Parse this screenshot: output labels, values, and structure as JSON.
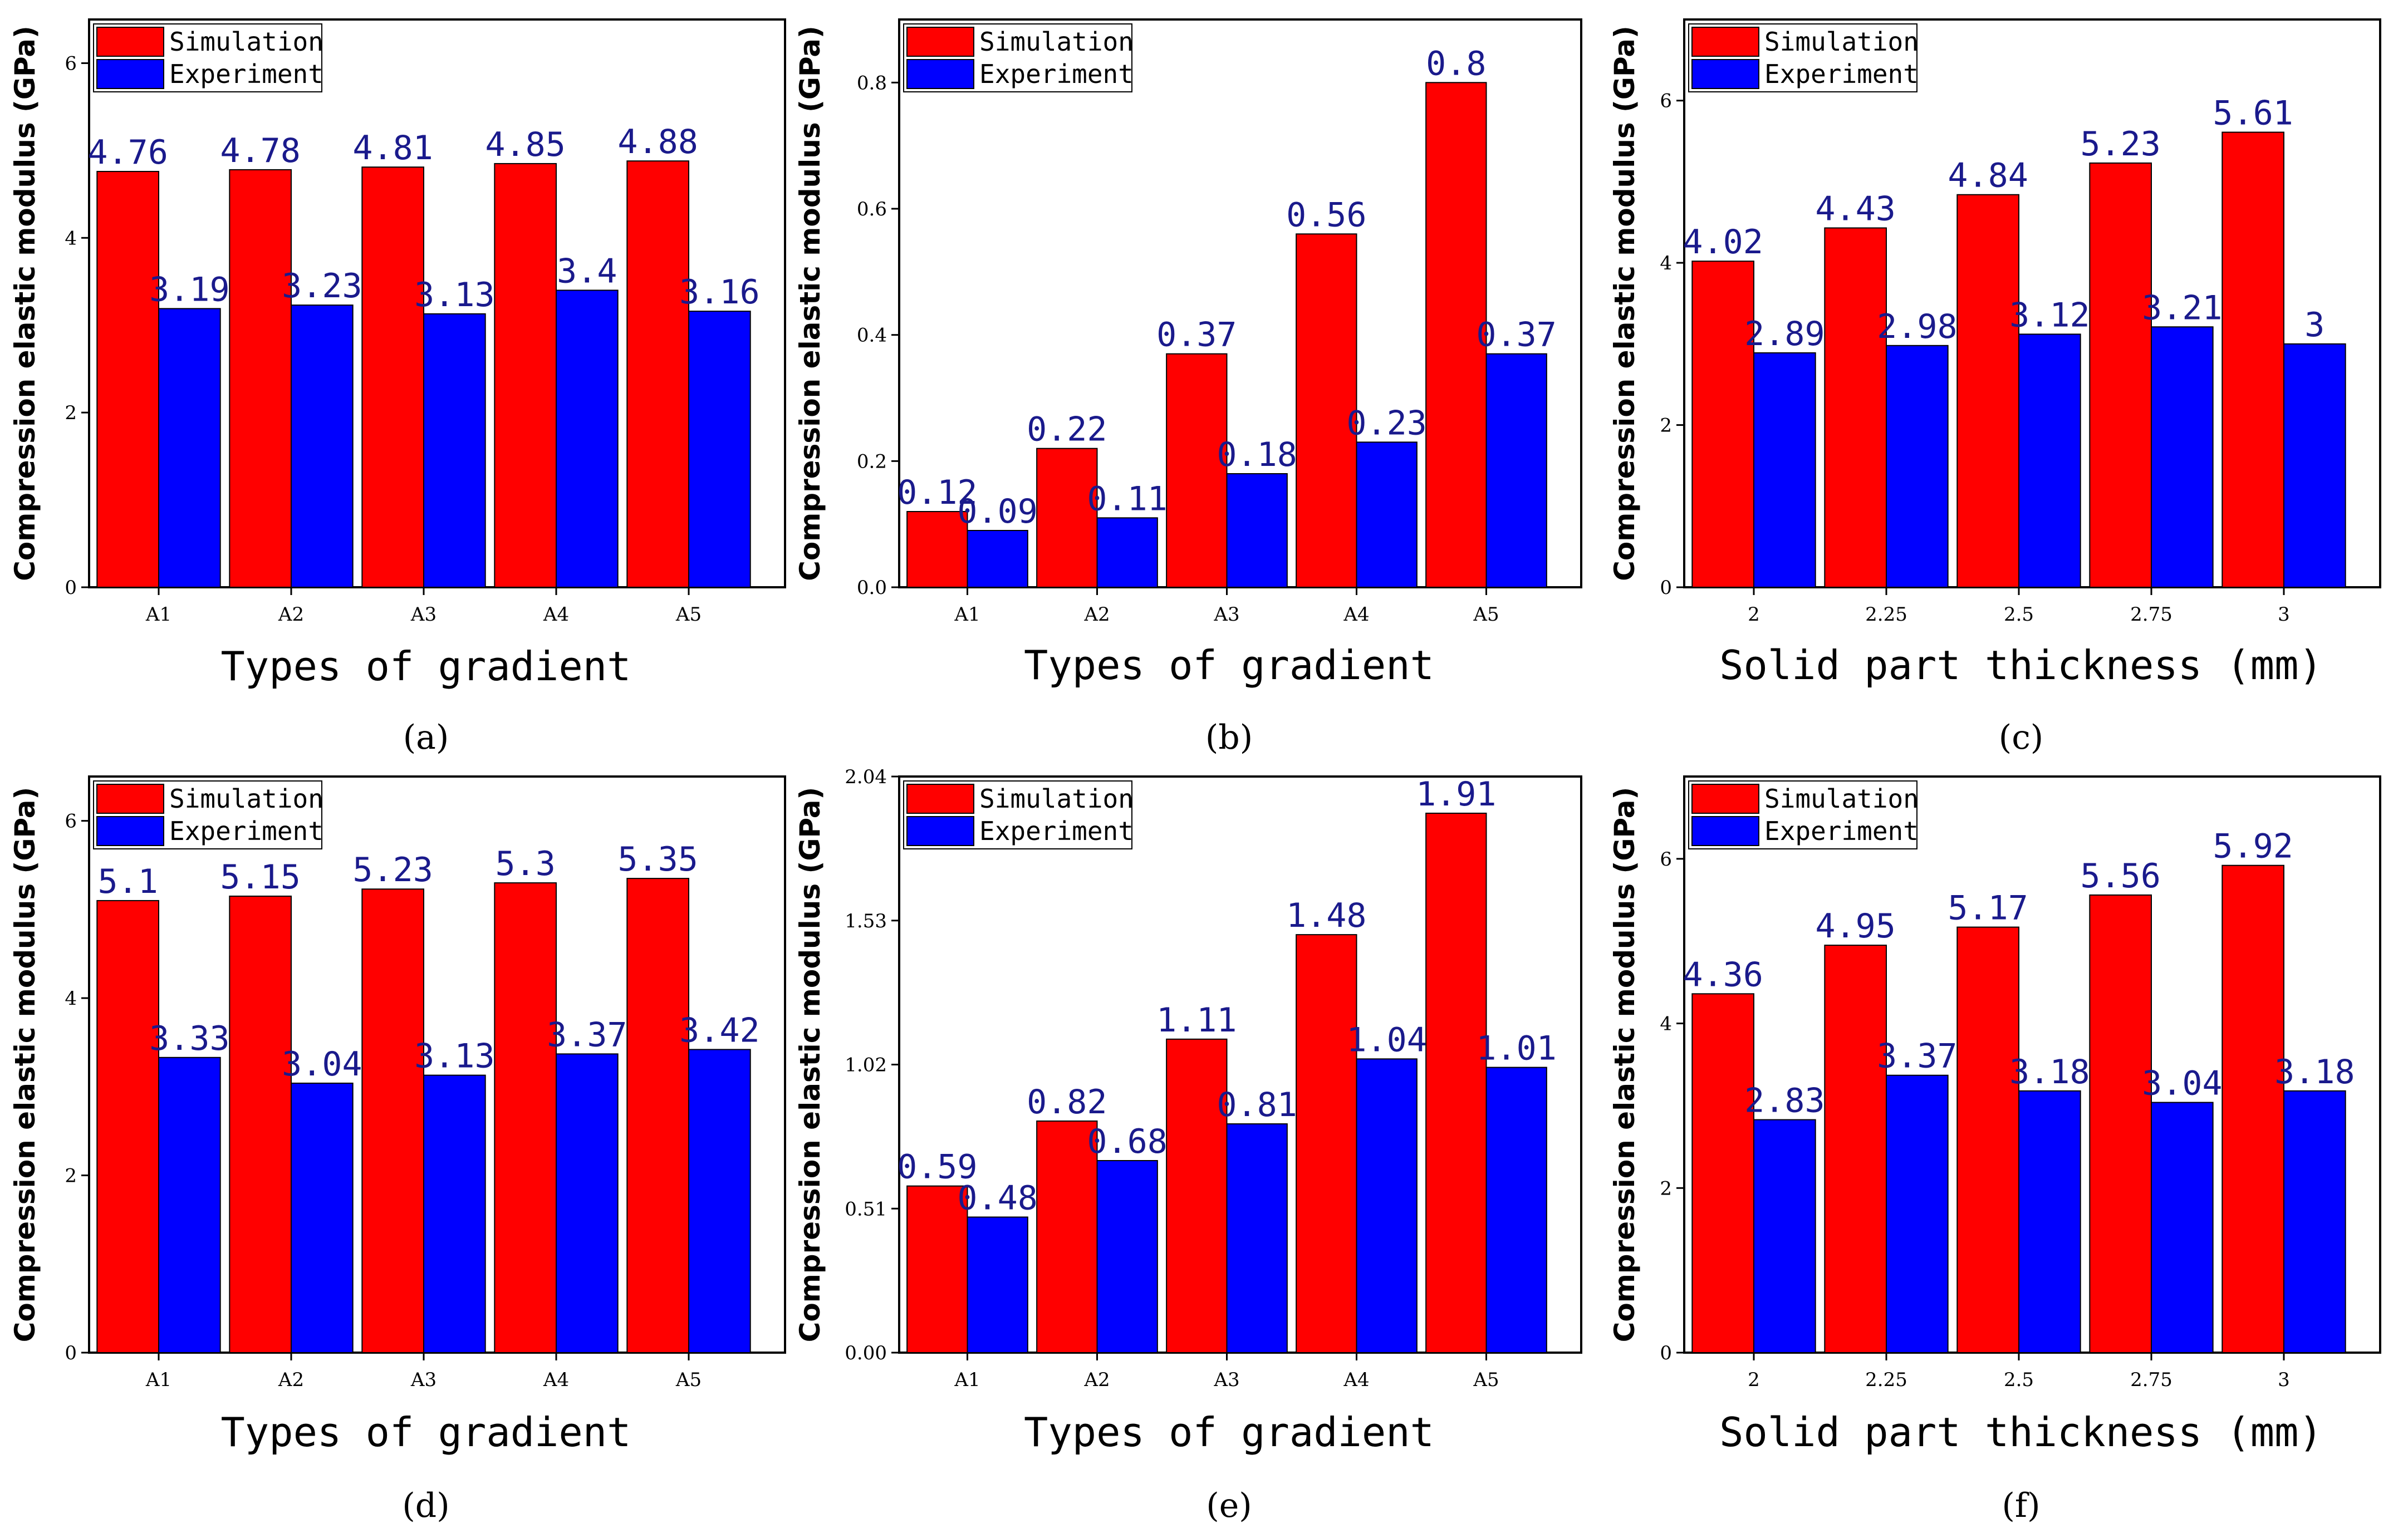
{
  "colors": {
    "simulation": "#ff0000",
    "experiment": "#0000ff",
    "label": "#1a1a8c"
  },
  "legend": {
    "simulation": "Simulation",
    "experiment": "Experiment"
  },
  "chart_data": [
    {
      "panel": "(a)",
      "panel_letter": "a",
      "type": "bar",
      "xlabel": "Types of gradient",
      "ylabel": "Compression elastic modulus (GPa)",
      "categories": [
        "A1",
        "A2",
        "A3",
        "A4",
        "A5"
      ],
      "ylim": [
        0,
        6.5
      ],
      "yticks": [
        0,
        2,
        4,
        6
      ],
      "ytick_labels": [
        "0",
        "2",
        "4",
        "6"
      ],
      "series": [
        {
          "name": "Simulation",
          "values": [
            4.76,
            4.78,
            4.81,
            4.85,
            4.88
          ],
          "labels": [
            "4.76",
            "4.78",
            "4.81",
            "4.85",
            "4.88"
          ]
        },
        {
          "name": "Experiment",
          "values": [
            3.19,
            3.23,
            3.13,
            3.4,
            3.16
          ],
          "labels": [
            "3.19",
            "3.23",
            "3.13",
            "3.4",
            "3.16"
          ]
        }
      ]
    },
    {
      "panel": "(b)",
      "panel_letter": "b",
      "type": "bar",
      "xlabel": "Types of gradient",
      "ylabel": "Compression elastic modulus (GPa)",
      "categories": [
        "A1",
        "A2",
        "A3",
        "A4",
        "A5"
      ],
      "ylim": [
        0,
        0.9
      ],
      "yticks": [
        0,
        0.2,
        0.4,
        0.6,
        0.8
      ],
      "ytick_labels": [
        "0.0",
        "0.2",
        "0.4",
        "0.6",
        "0.8"
      ],
      "series": [
        {
          "name": "Simulation",
          "values": [
            0.12,
            0.22,
            0.37,
            0.56,
            0.8
          ],
          "labels": [
            "0.12",
            "0.22",
            "0.37",
            "0.56",
            "0.8"
          ]
        },
        {
          "name": "Experiment",
          "values": [
            0.09,
            0.11,
            0.18,
            0.23,
            0.37
          ],
          "labels": [
            "0.09",
            "0.11",
            "0.18",
            "0.23",
            "0.37"
          ]
        }
      ]
    },
    {
      "panel": "(c)",
      "panel_letter": "c",
      "type": "bar",
      "xlabel": "Solid part thickness (mm)",
      "ylabel": "Compression elastic modulus (GPa)",
      "categories": [
        "2",
        "2.25",
        "2.5",
        "2.75",
        "3"
      ],
      "ylim": [
        0,
        7
      ],
      "yticks": [
        0,
        2,
        4,
        6
      ],
      "ytick_labels": [
        "0",
        "2",
        "4",
        "6"
      ],
      "series": [
        {
          "name": "Simulation",
          "values": [
            4.02,
            4.43,
            4.84,
            5.23,
            5.61
          ],
          "labels": [
            "4.02",
            "4.43",
            "4.84",
            "5.23",
            "5.61"
          ]
        },
        {
          "name": "Experiment",
          "values": [
            2.89,
            2.98,
            3.12,
            3.21,
            3.0
          ],
          "labels": [
            "2.89",
            "2.98",
            "3.12",
            "3.21",
            "3"
          ]
        }
      ]
    },
    {
      "panel": "(d)",
      "panel_letter": "d",
      "type": "bar",
      "xlabel": "Types of gradient",
      "ylabel": "Compression elastic modulus (GPa)",
      "categories": [
        "A1",
        "A2",
        "A3",
        "A4",
        "A5"
      ],
      "ylim": [
        0,
        6.5
      ],
      "yticks": [
        0,
        2,
        4,
        6
      ],
      "ytick_labels": [
        "0",
        "2",
        "4",
        "6"
      ],
      "series": [
        {
          "name": "Simulation",
          "values": [
            5.1,
            5.15,
            5.23,
            5.3,
            5.35
          ],
          "labels": [
            "5.1",
            "5.15",
            "5.23",
            "5.3",
            "5.35"
          ]
        },
        {
          "name": "Experiment",
          "values": [
            3.33,
            3.04,
            3.13,
            3.37,
            3.42
          ],
          "labels": [
            "3.33",
            "3.04",
            "3.13",
            "3.37",
            "3.42"
          ]
        }
      ]
    },
    {
      "panel": "(e)",
      "panel_letter": "e",
      "type": "bar",
      "xlabel": "Types of gradient",
      "ylabel": "Compression elastic modulus (GPa)",
      "categories": [
        "A1",
        "A2",
        "A3",
        "A4",
        "A5"
      ],
      "ylim": [
        0,
        2.04
      ],
      "yticks": [
        0,
        0.51,
        1.02,
        1.53,
        2.04
      ],
      "ytick_labels": [
        "0.00",
        "0.51",
        "1.02",
        "1.53",
        "2.04"
      ],
      "series": [
        {
          "name": "Simulation",
          "values": [
            0.59,
            0.82,
            1.11,
            1.48,
            1.91
          ],
          "labels": [
            "0.59",
            "0.82",
            "1.11",
            "1.48",
            "1.91"
          ]
        },
        {
          "name": "Experiment",
          "values": [
            0.48,
            0.68,
            0.81,
            1.04,
            1.01
          ],
          "labels": [
            "0.48",
            "0.68",
            "0.81",
            "1.04",
            "1.01"
          ]
        }
      ]
    },
    {
      "panel": "(f)",
      "panel_letter": "f",
      "type": "bar",
      "xlabel": "Solid part thickness (mm)",
      "ylabel": "Compression elastic modulus (GPa)",
      "categories": [
        "2",
        "2.25",
        "2.5",
        "2.75",
        "3"
      ],
      "ylim": [
        0,
        7
      ],
      "yticks": [
        0,
        2,
        4,
        6
      ],
      "ytick_labels": [
        "0",
        "2",
        "4",
        "6"
      ],
      "series": [
        {
          "name": "Simulation",
          "values": [
            4.36,
            4.95,
            5.17,
            5.56,
            5.92
          ],
          "labels": [
            "4.36",
            "4.95",
            "5.17",
            "5.56",
            "5.92"
          ]
        },
        {
          "name": "Experiment",
          "values": [
            2.83,
            3.37,
            3.18,
            3.04,
            3.18
          ],
          "labels": [
            "2.83",
            "3.37",
            "3.18",
            "3.04",
            "3.18"
          ]
        }
      ]
    }
  ]
}
